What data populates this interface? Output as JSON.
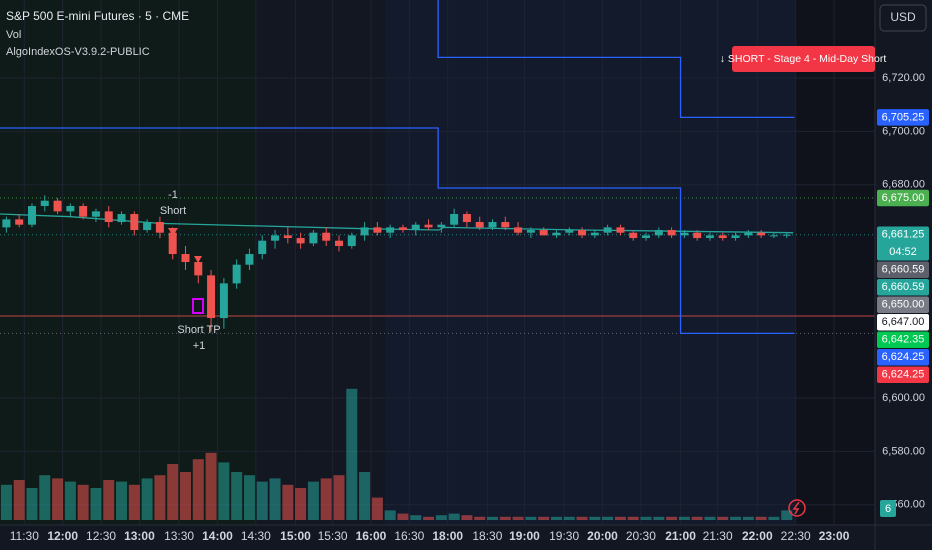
{
  "chart_data": {
    "type": "candlestick",
    "title": "S&P 500 E-mini Futures · 5 · CME",
    "indicators": [
      "Vol",
      "AlgoIndexOS-V3.9.2-PUBLIC"
    ],
    "currency": "USD",
    "signal": "↓ SHORT - Stage 4 - Mid-Day Short",
    "annotations": [
      "-1",
      "Short",
      "Short TP",
      "+1"
    ],
    "countdown": "04:52",
    "up_color": "#26a69a",
    "down_color": "#ef5350",
    "open": [
      6664,
      6667,
      6665,
      6672,
      6674,
      6670,
      6672,
      6668,
      6670,
      6666,
      6669,
      6663,
      6666,
      6662,
      6654,
      6651,
      6646,
      6630,
      6643,
      6650,
      6654,
      6659,
      6661,
      6660,
      6658,
      6662,
      6659,
      6657,
      6661,
      6664,
      6662,
      6664,
      6663,
      6665,
      6664,
      6665,
      6669,
      6666,
      6664,
      6666,
      6664,
      6662,
      6663,
      6661,
      6662,
      6663,
      6661,
      6662,
      6664,
      6662,
      6660,
      6661,
      6663,
      6661,
      6662,
      6660,
      6661,
      6660,
      6661,
      6662,
      6661,
      6661
    ],
    "high": [
      6668,
      6669,
      6673,
      6676,
      6675,
      6673,
      6673,
      6671,
      6672,
      6670,
      6670,
      6667,
      6668,
      6664,
      6657,
      6653,
      6648,
      6645,
      6652,
      6656,
      6661,
      6663,
      6664,
      6662,
      6663,
      6664,
      6661,
      6662,
      6666,
      6666,
      6665,
      6665,
      6666,
      6667,
      6666,
      6671,
      6670,
      6668,
      6667,
      6668,
      6666,
      6664,
      6664,
      6663,
      6664,
      6664,
      6663,
      6665,
      6665,
      6663,
      6662,
      6664,
      6664,
      6663,
      6663,
      6662,
      6662,
      6662,
      6663,
      6663,
      6662,
      6662
    ],
    "low": [
      6662,
      6664,
      6664,
      6670,
      6669,
      6668,
      6667,
      6666,
      6664,
      6665,
      6661,
      6662,
      6660,
      6652,
      6648,
      6643,
      6625,
      6626,
      6641,
      6648,
      6652,
      6656,
      6658,
      6656,
      6657,
      6657,
      6655,
      6656,
      6659,
      6661,
      6660,
      6662,
      6661,
      6663,
      6662,
      6664,
      6664,
      6663,
      6663,
      6663,
      6661,
      6660,
      6661,
      6660,
      6661,
      6660,
      6660,
      6661,
      6661,
      6659,
      6659,
      6660,
      6660,
      6660,
      6659,
      6659,
      6659,
      6659,
      6660,
      6660,
      6660,
      6660
    ],
    "close": [
      6667,
      6665,
      6672,
      6674,
      6670,
      6672,
      6668,
      6670,
      6666,
      6669,
      6663,
      6666,
      6662,
      6654,
      6651,
      6646,
      6630,
      6643,
      6650,
      6654,
      6659,
      6661,
      6660,
      6658,
      6662,
      6659,
      6657,
      6661,
      6664,
      6662,
      6664,
      6663,
      6665,
      6664,
      6665,
      6669,
      6666,
      6664,
      6666,
      6664,
      6662,
      6663,
      6661,
      6662,
      6663,
      6661,
      6662,
      6664,
      6662,
      6660,
      6661,
      6663,
      6661,
      6662,
      6660,
      6661,
      6660,
      6661,
      6662,
      6661,
      6661,
      6661.25
    ],
    "volume": [
      22,
      25,
      20,
      28,
      26,
      24,
      22,
      20,
      25,
      24,
      22,
      26,
      28,
      35,
      30,
      38,
      42,
      36,
      30,
      28,
      24,
      26,
      22,
      20,
      24,
      26,
      28,
      82,
      30,
      14,
      6,
      4,
      3,
      2,
      3,
      4,
      3,
      2,
      2,
      2,
      2,
      2,
      2,
      2,
      2,
      2,
      2,
      2,
      2,
      2,
      2,
      2,
      2,
      2,
      2,
      2,
      2,
      2,
      2,
      2,
      2,
      6
    ],
    "vlim": [
      0,
      100
    ],
    "xlim": [
      -0.5,
      67.9
    ],
    "ylim": [
      6552.4,
      6749.25
    ],
    "grid": true,
    "yticks": [
      {
        "value": 6720,
        "label": "6,720.00"
      },
      {
        "value": 6700,
        "label": "6,700.00"
      },
      {
        "value": 6680,
        "label": "6,680.00"
      },
      {
        "value": 6600,
        "label": "6,600.00"
      },
      {
        "value": 6580,
        "label": "6,580.00"
      },
      {
        "value": 6560,
        "label": "6,560.00"
      }
    ],
    "xticks": [
      {
        "value": 1.4,
        "label": "11:30"
      },
      {
        "value": 4.4,
        "label": "12:00"
      },
      {
        "value": 7.4,
        "label": "12:30"
      },
      {
        "value": 10.4,
        "label": "13:00"
      },
      {
        "value": 13.5,
        "label": "13:30"
      },
      {
        "value": 16.5,
        "label": "14:00"
      },
      {
        "value": 19.5,
        "label": "14:30"
      },
      {
        "value": 22.6,
        "label": "15:00"
      },
      {
        "value": 25.5,
        "label": "15:30"
      },
      {
        "value": 28.5,
        "label": "16:00"
      },
      {
        "value": 31.5,
        "label": "16:30"
      },
      {
        "value": 34.5,
        "label": "18:00"
      },
      {
        "value": 37.6,
        "label": "18:30"
      },
      {
        "value": 40.5,
        "label": "19:00"
      },
      {
        "value": 43.6,
        "label": "19:30"
      },
      {
        "value": 46.6,
        "label": "20:00"
      },
      {
        "value": 49.6,
        "label": "20:30"
      },
      {
        "value": 52.7,
        "label": "21:00"
      },
      {
        "value": 55.6,
        "label": "21:30"
      },
      {
        "value": 58.7,
        "label": "22:00"
      },
      {
        "value": 61.7,
        "label": "22:30"
      },
      {
        "value": 64.7,
        "label": "23:00"
      }
    ],
    "levels": [
      {
        "color": "#2962ff",
        "x": [
          33.75,
          33.75,
          52.7,
          52.7,
          61.6
        ],
        "y": [
          6749.25,
          6727.75,
          6727.75,
          6705.25,
          6705.25
        ]
      },
      {
        "color": "#2962ff",
        "x": [
          -0.5,
          33.75,
          33.75,
          52.7,
          52.7,
          61.6
        ],
        "y": [
          6701.25,
          6701.25,
          6678.75,
          6678.75,
          6624.25,
          6624.25
        ]
      }
    ],
    "ma": {
      "color": "#26a69a",
      "x": [
        -0.5,
        5,
        12,
        20,
        28,
        33.8,
        34.2,
        45,
        61.5
      ],
      "y": [
        6669,
        6668,
        6665.5,
        6664.5,
        6663.5,
        6663,
        6664,
        6663,
        6662
      ]
    },
    "hlines": [
      {
        "value": 6675,
        "color": "#4caf50",
        "style": "dotted"
      },
      {
        "value": 6661.25,
        "color": "#26a69a",
        "style": "dotted"
      },
      {
        "value": 6624.25,
        "color": "#787b86",
        "style": "dotted"
      },
      {
        "value": 6630.75,
        "color": "#ef5350",
        "style": "solid"
      }
    ],
    "price_labels": [
      {
        "value": 6705.25,
        "label": "6,705.25",
        "color": "#2962ff"
      },
      {
        "value": 6675,
        "label": "6,675.00",
        "color": "#4caf50"
      },
      {
        "value": 6661.25,
        "label": "6,661.25",
        "color": "#26a69a"
      },
      {
        "value": 6660.59,
        "label": "6,660.59",
        "color": "#5d606b"
      },
      {
        "value": 6660.59,
        "label": "6,660.59",
        "color": "#26a69a"
      },
      {
        "value": 6650,
        "label": "6,650.00",
        "color": "#787b86"
      },
      {
        "value": 6647,
        "label": "6,647.00",
        "color": "#ffffff"
      },
      {
        "value": 6642.35,
        "label": "6,642.35",
        "color": "#00c853"
      },
      {
        "value": 6624.25,
        "label": "6,624.25",
        "color": "#2962ff"
      },
      {
        "value": 6624.25,
        "label": "6,624.25",
        "color": "#f23645"
      }
    ]
  }
}
